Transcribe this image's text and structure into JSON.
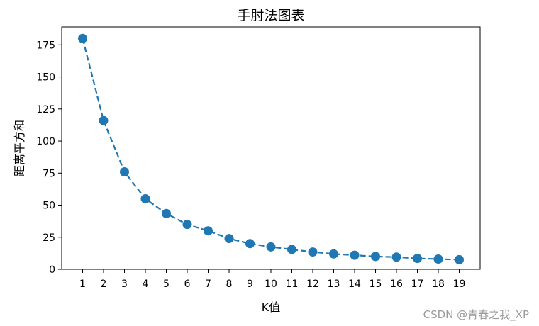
{
  "chart_data": {
    "type": "line",
    "title": "手肘法图表",
    "xlabel": "K值",
    "ylabel": "距离平方和",
    "x": [
      1,
      2,
      3,
      4,
      5,
      6,
      7,
      8,
      9,
      10,
      11,
      12,
      13,
      14,
      15,
      16,
      17,
      18,
      19
    ],
    "series": [
      {
        "values": [
          180,
          116,
          76,
          55,
          43.5,
          35,
          30,
          24,
          20,
          17.5,
          15.5,
          13.5,
          12,
          11,
          10,
          9.5,
          8.5,
          8,
          7.5
        ],
        "color": "#1f77b4",
        "line_style": "dashed",
        "marker": "circle"
      }
    ],
    "xticks": [
      "1",
      "2",
      "3",
      "4",
      "5",
      "6",
      "7",
      "8",
      "9",
      "10",
      "11",
      "12",
      "13",
      "14",
      "15",
      "16",
      "17",
      "18",
      "19"
    ],
    "yticks": [
      "0",
      "25",
      "50",
      "75",
      "100",
      "125",
      "150",
      "175"
    ],
    "xlim": [
      0,
      20
    ],
    "ylim": [
      0,
      189
    ],
    "grid": false,
    "legend": "none"
  },
  "watermark": "CSDN @青春之我_XP"
}
